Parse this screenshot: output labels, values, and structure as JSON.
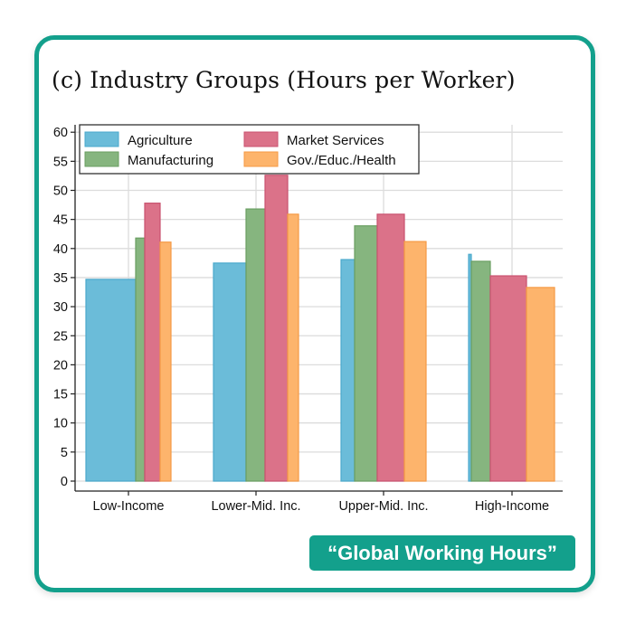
{
  "card": {
    "title": "(c) Industry Groups (Hours per Worker)",
    "badge": "“Global Working Hours”",
    "accent_color": "#13a08c"
  },
  "chart_data": {
    "type": "bar",
    "title": "(c) Industry Groups (Hours per Worker)",
    "xlabel": "",
    "ylabel": "",
    "categories": [
      "Low-Income",
      "Lower-Mid. Inc.",
      "Upper-Mid. Inc.",
      "High-Income"
    ],
    "series": [
      {
        "name": "Agriculture",
        "color": "#6bbcd9",
        "values": [
          34.7,
          37.5,
          38.1,
          39.0
        ]
      },
      {
        "name": "Manufacturing",
        "color": "#86b57f",
        "values": [
          41.8,
          46.8,
          43.9,
          37.8
        ]
      },
      {
        "name": "Market Services",
        "color": "#db7289",
        "values": [
          47.8,
          52.6,
          45.9,
          35.3
        ]
      },
      {
        "name": "Gov./Educ./Health",
        "color": "#fdb46c",
        "values": [
          41.1,
          45.9,
          41.2,
          33.3
        ]
      }
    ],
    "yticks": [
      0,
      5,
      10,
      15,
      20,
      25,
      30,
      35,
      40,
      45,
      50,
      55,
      60
    ],
    "ylim": [
      0,
      60
    ],
    "grid": true,
    "legend_position": "top-left inside, 2 columns",
    "note": "bar widths vary by group (proportional widths)"
  }
}
